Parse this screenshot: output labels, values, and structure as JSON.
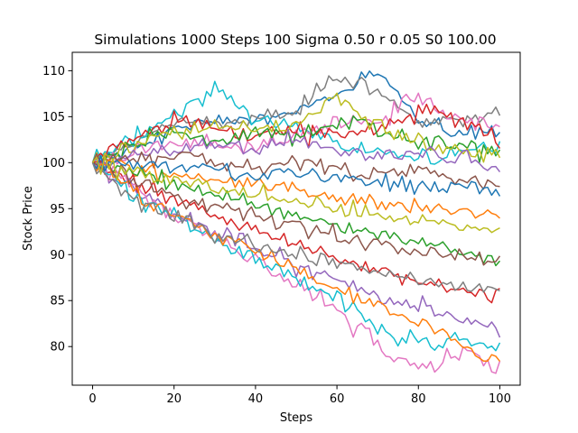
{
  "chart_data": {
    "type": "line",
    "title": "Simulations 1000 Steps 100 Sigma 0.50 r 0.05 S0 100.00",
    "xlabel": "Steps",
    "ylabel": "Stock Price",
    "xlim": [
      -5,
      105
    ],
    "ylim": [
      75.8,
      112
    ],
    "xticks": [
      0,
      20,
      40,
      60,
      80,
      100
    ],
    "yticks": [
      80,
      85,
      90,
      95,
      100,
      105,
      110
    ],
    "grid": false,
    "legend": "none",
    "simulations": 1000,
    "steps": 100,
    "sigma": 0.5,
    "r": 0.05,
    "S0": 100.0,
    "colors": [
      "#1f77b4",
      "#ff7f0e",
      "#2ca02c",
      "#d62728",
      "#9467bd",
      "#8c564b",
      "#e377c2",
      "#7f7f7f",
      "#bcbd22",
      "#17becf"
    ],
    "series": [
      {
        "color": "#1f77b4",
        "points": [
          [
            0,
            100
          ],
          [
            10,
            101.8
          ],
          [
            20,
            103.5
          ],
          [
            30,
            104.6
          ],
          [
            40,
            104.9
          ],
          [
            50,
            105.4
          ],
          [
            60,
            107.2
          ],
          [
            64,
            108.2
          ],
          [
            68,
            110
          ],
          [
            72,
            108.6
          ],
          [
            80,
            104.6
          ],
          [
            90,
            103.3
          ],
          [
            100,
            102.8
          ]
        ]
      },
      {
        "color": "#7f7f7f",
        "points": [
          [
            0,
            100
          ],
          [
            10,
            102
          ],
          [
            20,
            104.2
          ],
          [
            30,
            104.5
          ],
          [
            40,
            104.6
          ],
          [
            50,
            105.4
          ],
          [
            55,
            108.1
          ],
          [
            60,
            109.1
          ],
          [
            66,
            108.8
          ],
          [
            72,
            107.1
          ],
          [
            80,
            104.2
          ],
          [
            90,
            104.7
          ],
          [
            100,
            105.4
          ]
        ]
      },
      {
        "color": "#17becf",
        "points": [
          [
            0,
            100
          ],
          [
            10,
            102.7
          ],
          [
            20,
            104.9
          ],
          [
            26,
            106.6
          ],
          [
            30,
            108.6
          ],
          [
            33,
            107.5
          ],
          [
            40,
            104.8
          ],
          [
            50,
            104
          ],
          [
            60,
            102.2
          ],
          [
            70,
            101.3
          ],
          [
            80,
            100.5
          ],
          [
            90,
            101.2
          ],
          [
            100,
            101.8
          ]
        ]
      },
      {
        "color": "#e377c2",
        "points": [
          [
            0,
            100
          ],
          [
            10,
            101.2
          ],
          [
            20,
            102.2
          ],
          [
            30,
            101.8
          ],
          [
            40,
            101.5
          ],
          [
            50,
            103
          ],
          [
            60,
            104.6
          ],
          [
            70,
            104.2
          ],
          [
            76,
            106.6
          ],
          [
            80,
            107.4
          ],
          [
            84,
            106.1
          ],
          [
            90,
            104.6
          ],
          [
            100,
            104
          ]
        ]
      },
      {
        "color": "#d62728",
        "points": [
          [
            0,
            100
          ],
          [
            10,
            102.5
          ],
          [
            20,
            104.6
          ],
          [
            30,
            103.8
          ],
          [
            40,
            102.8
          ],
          [
            50,
            103.6
          ],
          [
            60,
            103.1
          ],
          [
            70,
            103.7
          ],
          [
            80,
            105.1
          ],
          [
            84,
            105.9
          ],
          [
            90,
            104.3
          ],
          [
            100,
            102.9
          ]
        ]
      },
      {
        "color": "#2ca02c",
        "points": [
          [
            0,
            100
          ],
          [
            10,
            101.8
          ],
          [
            20,
            103.2
          ],
          [
            30,
            102.5
          ],
          [
            40,
            103
          ],
          [
            50,
            102.8
          ],
          [
            60,
            104.3
          ],
          [
            66,
            104.9
          ],
          [
            70,
            103.4
          ],
          [
            80,
            102.3
          ],
          [
            90,
            101.7
          ],
          [
            100,
            101.2
          ]
        ]
      },
      {
        "color": "#bcbd22",
        "points": [
          [
            0,
            100
          ],
          [
            10,
            101.5
          ],
          [
            20,
            103
          ],
          [
            30,
            104.1
          ],
          [
            40,
            103.6
          ],
          [
            50,
            104.2
          ],
          [
            60,
            107.3
          ],
          [
            64,
            105.6
          ],
          [
            70,
            104
          ],
          [
            80,
            102.3
          ],
          [
            90,
            101.5
          ],
          [
            100,
            100.7
          ]
        ]
      },
      {
        "color": "#9467bd",
        "points": [
          [
            0,
            100
          ],
          [
            10,
            100.8
          ],
          [
            20,
            101.3
          ],
          [
            30,
            102
          ],
          [
            40,
            101.4
          ],
          [
            50,
            102.3
          ],
          [
            60,
            101.5
          ],
          [
            70,
            100.7
          ],
          [
            80,
            101.3
          ],
          [
            90,
            100.3
          ],
          [
            100,
            99.2
          ]
        ]
      },
      {
        "color": "#8c564b",
        "points": [
          [
            0,
            100
          ],
          [
            10,
            100.3
          ],
          [
            20,
            100.9
          ],
          [
            30,
            100.1
          ],
          [
            40,
            99.4
          ],
          [
            50,
            100.2
          ],
          [
            60,
            99.4
          ],
          [
            70,
            98.7
          ],
          [
            80,
            99.3
          ],
          [
            90,
            98.3
          ],
          [
            100,
            97.6
          ]
        ]
      },
      {
        "color": "#ff7f0e",
        "points": [
          [
            0,
            100
          ],
          [
            10,
            99.4
          ],
          [
            20,
            98.8
          ],
          [
            30,
            98.2
          ],
          [
            40,
            97.6
          ],
          [
            50,
            96.9
          ],
          [
            60,
            96.3
          ],
          [
            70,
            95.7
          ],
          [
            80,
            95.2
          ],
          [
            90,
            94.6
          ],
          [
            100,
            94
          ]
        ]
      },
      {
        "color": "#2ca02c",
        "points": [
          [
            0,
            100
          ],
          [
            10,
            98.8
          ],
          [
            20,
            97.7
          ],
          [
            30,
            96.6
          ],
          [
            40,
            95.4
          ],
          [
            50,
            94.2
          ],
          [
            60,
            93.2
          ],
          [
            70,
            92.2
          ],
          [
            80,
            91.3
          ],
          [
            90,
            90.4
          ],
          [
            100,
            89.6
          ]
        ]
      },
      {
        "color": "#d62728",
        "points": [
          [
            0,
            100
          ],
          [
            10,
            97.9
          ],
          [
            20,
            96.1
          ],
          [
            30,
            94.4
          ],
          [
            40,
            92.6
          ],
          [
            50,
            91.2
          ],
          [
            60,
            89.6
          ],
          [
            70,
            88.2
          ],
          [
            80,
            87.1
          ],
          [
            90,
            86
          ],
          [
            100,
            85
          ]
        ]
      },
      {
        "color": "#9467bd",
        "points": [
          [
            0,
            100
          ],
          [
            10,
            97.2
          ],
          [
            20,
            94.7
          ],
          [
            30,
            92.5
          ],
          [
            40,
            90.4
          ],
          [
            50,
            88.7
          ],
          [
            60,
            87.2
          ],
          [
            70,
            85.6
          ],
          [
            80,
            84.2
          ],
          [
            90,
            83.2
          ],
          [
            100,
            82
          ]
        ]
      },
      {
        "color": "#e377c2",
        "points": [
          [
            0,
            100
          ],
          [
            8,
            97.8
          ],
          [
            16,
            95.4
          ],
          [
            24,
            93.4
          ],
          [
            32,
            91.2
          ],
          [
            40,
            89.3
          ],
          [
            48,
            87.1
          ],
          [
            56,
            85.2
          ],
          [
            62,
            82.6
          ],
          [
            68,
            81.8
          ],
          [
            72,
            79.5
          ],
          [
            76,
            78.5
          ],
          [
            80,
            77.6
          ],
          [
            84,
            77.8
          ],
          [
            88,
            78.6
          ],
          [
            92,
            79.6
          ],
          [
            96,
            78.2
          ],
          [
            100,
            77.5
          ]
        ]
      },
      {
        "color": "#17becf",
        "points": [
          [
            0,
            100
          ],
          [
            10,
            96.7
          ],
          [
            20,
            94.1
          ],
          [
            30,
            91.6
          ],
          [
            40,
            89.3
          ],
          [
            50,
            87.2
          ],
          [
            60,
            85.3
          ],
          [
            66,
            84.1
          ],
          [
            70,
            81.6
          ],
          [
            74,
            80.7
          ],
          [
            78,
            81.1
          ],
          [
            84,
            80.2
          ],
          [
            88,
            80.9
          ],
          [
            94,
            80.4
          ],
          [
            100,
            79.7
          ]
        ]
      },
      {
        "color": "#ff7f0e",
        "points": [
          [
            0,
            100
          ],
          [
            10,
            97
          ],
          [
            20,
            94.3
          ],
          [
            30,
            92.1
          ],
          [
            40,
            90.2
          ],
          [
            50,
            88.4
          ],
          [
            60,
            86.2
          ],
          [
            70,
            84.5
          ],
          [
            80,
            82.6
          ],
          [
            86,
            82.1
          ],
          [
            90,
            80.1
          ],
          [
            96,
            78.8
          ],
          [
            100,
            78.5
          ]
        ]
      },
      {
        "color": "#8c564b",
        "points": [
          [
            0,
            100
          ],
          [
            10,
            98.1
          ],
          [
            20,
            96.5
          ],
          [
            30,
            95.1
          ],
          [
            40,
            94.2
          ],
          [
            50,
            93.1
          ],
          [
            60,
            92.2
          ],
          [
            70,
            91.4
          ],
          [
            80,
            90.5
          ],
          [
            90,
            89.9
          ],
          [
            100,
            89.3
          ]
        ]
      },
      {
        "color": "#1f77b4",
        "points": [
          [
            0,
            100
          ],
          [
            10,
            99.8
          ],
          [
            20,
            99.6
          ],
          [
            30,
            99.2
          ],
          [
            40,
            98.9
          ],
          [
            50,
            98.8
          ],
          [
            60,
            98.3
          ],
          [
            70,
            98.2
          ],
          [
            80,
            97.8
          ],
          [
            90,
            97.3
          ],
          [
            100,
            97.1
          ]
        ]
      },
      {
        "color": "#7f7f7f",
        "points": [
          [
            0,
            100
          ],
          [
            5,
            97.8
          ],
          [
            10,
            96
          ],
          [
            15,
            95.1
          ],
          [
            20,
            94.2
          ],
          [
            25,
            93.5
          ],
          [
            30,
            92.1
          ],
          [
            35,
            91.6
          ],
          [
            40,
            91.1
          ],
          [
            50,
            90.1
          ],
          [
            60,
            89.1
          ],
          [
            70,
            88.2
          ],
          [
            80,
            87.4
          ],
          [
            90,
            86.8
          ],
          [
            100,
            86.1
          ]
        ]
      },
      {
        "color": "#bcbd22",
        "points": [
          [
            0,
            100
          ],
          [
            10,
            99
          ],
          [
            20,
            98.2
          ],
          [
            30,
            97.4
          ],
          [
            40,
            96.6
          ],
          [
            50,
            95.8
          ],
          [
            60,
            95.2
          ],
          [
            70,
            94.4
          ],
          [
            80,
            93.8
          ],
          [
            90,
            93.1
          ],
          [
            100,
            92.5
          ]
        ]
      }
    ]
  }
}
